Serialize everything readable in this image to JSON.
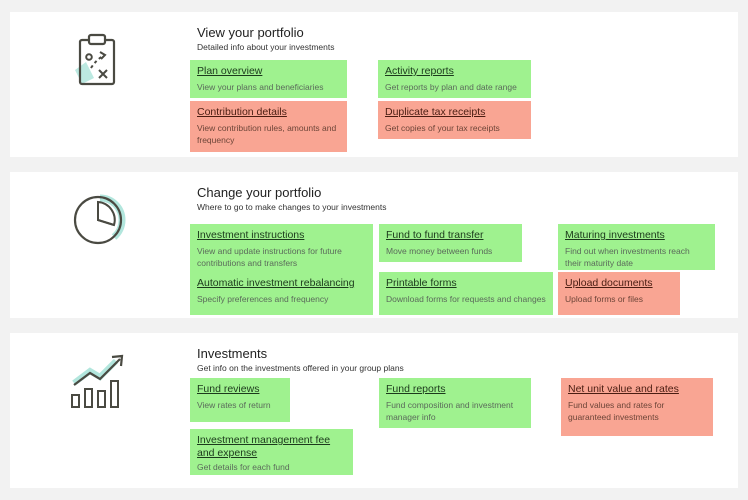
{
  "colors": {
    "green": "#9ff28f",
    "red": "#f9a593",
    "icon_teal": "#9fe0d4",
    "icon_stroke": "#4a4a42"
  },
  "sections": [
    {
      "icon": "clipboard-strategy-icon",
      "title": "View your portfolio",
      "subtitle": "Detailed info about your investments",
      "links": [
        {
          "title": "Plan overview",
          "desc": "View your plans and beneficiaries",
          "status": "green"
        },
        {
          "title": "Activity reports",
          "desc": "Get reports by plan and date range",
          "status": "green"
        },
        {
          "title": "Contribution details",
          "desc": "View contribution rules, amounts and frequency",
          "status": "red"
        },
        {
          "title": "Duplicate tax receipts",
          "desc": "Get copies of your tax receipts",
          "status": "red"
        }
      ]
    },
    {
      "icon": "pie-chart-icon",
      "title": "Change your portfolio",
      "subtitle": "Where to go to make changes to your investments",
      "links": [
        {
          "title": "Investment instructions",
          "desc": "View and update instructions for future contributions and transfers",
          "status": "green"
        },
        {
          "title": "Fund to fund transfer",
          "desc": "Move money between funds",
          "status": "green"
        },
        {
          "title": "Maturing investments",
          "desc": "Find out when investments reach their maturity date",
          "status": "green"
        },
        {
          "title": "Automatic investment rebalancing",
          "desc": "Specify preferences and frequency",
          "status": "green"
        },
        {
          "title": "Printable forms",
          "desc": "Download forms for requests and changes",
          "status": "green"
        },
        {
          "title": "Upload documents",
          "desc": "Upload forms or files",
          "status": "red"
        }
      ]
    },
    {
      "icon": "growth-chart-icon",
      "title": "Investments",
      "subtitle": "Get info on the investments offered in your group plans",
      "links": [
        {
          "title": "Fund reviews",
          "desc": "View rates of return",
          "status": "green"
        },
        {
          "title": "Fund reports",
          "desc": "Fund composition and investment manager info",
          "status": "green"
        },
        {
          "title": "Net unit value and rates",
          "desc": "Fund values and rates for guaranteed investments",
          "status": "red"
        },
        {
          "title": "Investment management fee and expense",
          "desc": "Get details for each fund",
          "status": "green"
        }
      ]
    }
  ]
}
